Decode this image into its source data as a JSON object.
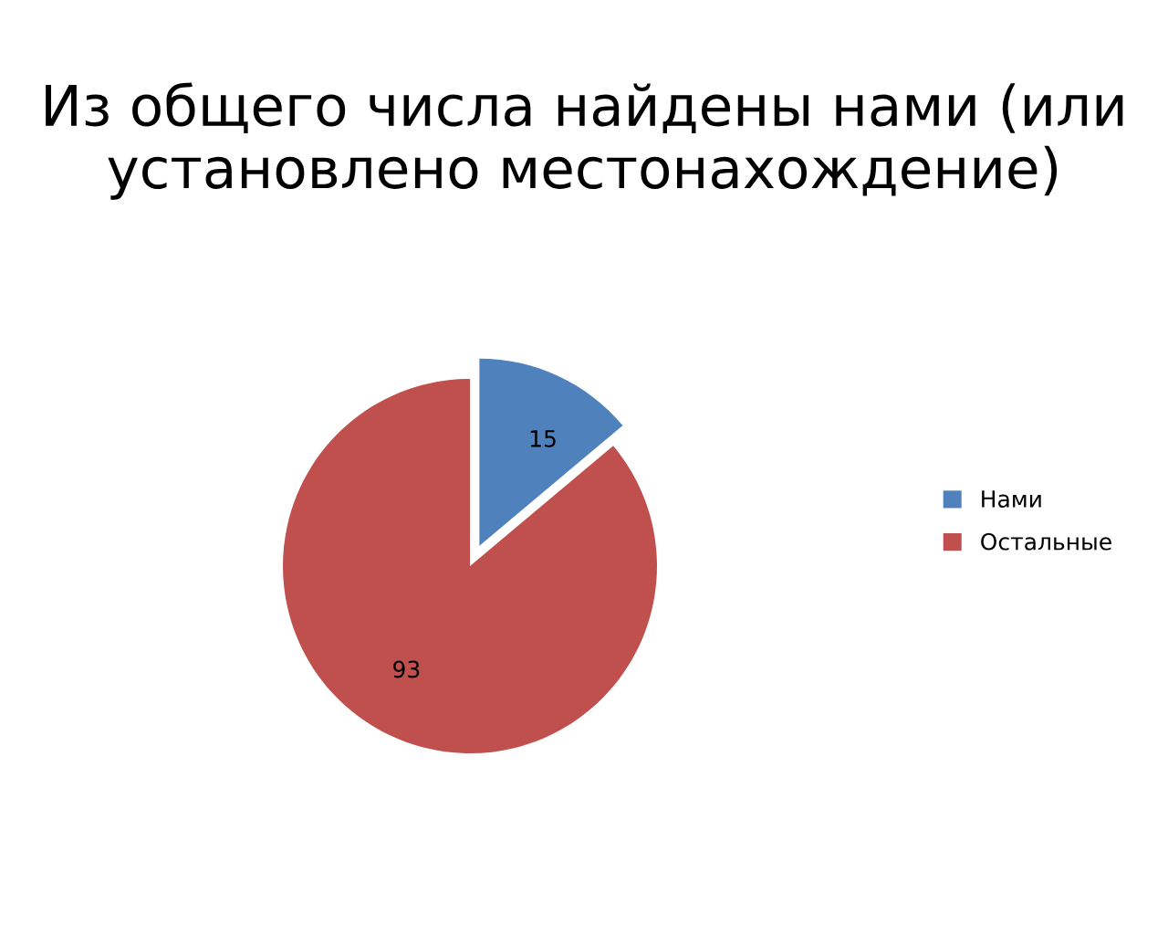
{
  "chart_data": {
    "type": "pie",
    "title": "Из общего числа найдены нами (или установлено местонахождение)",
    "categories": [
      "Нами",
      "Остальные"
    ],
    "values": [
      15,
      93
    ],
    "colors": [
      "#4f81bd",
      "#c0504d"
    ],
    "data_labels": true,
    "legend": "right"
  }
}
